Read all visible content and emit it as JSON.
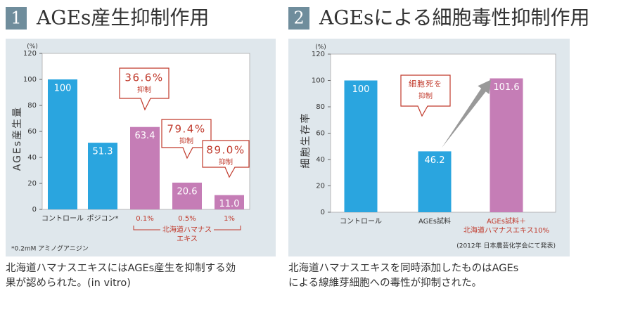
{
  "chart_data": [
    {
      "type": "bar",
      "number": "1",
      "title": "AGEs産生抑制作用",
      "y_unit": "(%)",
      "ylabel": "AGEs産生量",
      "categories": [
        [
          "コントロール"
        ],
        [
          "ポジコン*"
        ],
        [
          "0.1%"
        ],
        [
          "0.5%"
        ],
        [
          "1%"
        ]
      ],
      "values": [
        100,
        51.3,
        63.4,
        20.6,
        11.0
      ],
      "value_labels": [
        "100",
        "51.3",
        "63.4",
        "20.6",
        "11.0"
      ],
      "colors": [
        "#2aa5df",
        "#2aa5df",
        "#c57db6",
        "#c57db6",
        "#c57db6"
      ],
      "label_colors": [
        "#333333",
        "#333333",
        "#c0392b",
        "#c0392b",
        "#c0392b"
      ],
      "ylim": [
        0,
        120
      ],
      "yticks": [
        0,
        20,
        40,
        60,
        80,
        100,
        120
      ],
      "annotations": [
        [
          "36.6%",
          "抑制"
        ],
        [
          "79.4%",
          "抑制"
        ],
        [
          "89.0%",
          "抑制"
        ]
      ],
      "group_label": [
        "北海道ハマナス",
        "エキス"
      ],
      "footnote": "*0.2mM アミノグアニジン",
      "caption": [
        "北海道ハマナスエキスにはAGEs産生を抑制する効",
        "果が認められた。(in vitro)"
      ]
    },
    {
      "type": "bar",
      "number": "2",
      "title": "AGEsによる細胞毒性抑制作用",
      "y_unit": "(%)",
      "ylabel": "細胞生存率",
      "categories": [
        [
          "コントロール"
        ],
        [
          "AGEs試料"
        ],
        [
          "AGEs試料＋",
          "北海道ハマナスエキス10%"
        ]
      ],
      "values": [
        100,
        46.2,
        101.6
      ],
      "value_labels": [
        "100",
        "46.2",
        "101.6"
      ],
      "colors": [
        "#2aa5df",
        "#2aa5df",
        "#c57db6"
      ],
      "label_colors": [
        "#333333",
        "#333333",
        "#c0392b"
      ],
      "ylim": [
        0,
        120
      ],
      "yticks": [
        0,
        20,
        40,
        60,
        80,
        100,
        120
      ],
      "annotations": [
        [
          "細胞死を",
          "抑制"
        ]
      ],
      "note": "(2012年 日本農芸化学会にて発表)",
      "caption": [
        "北海道ハマナスエキスを同時添加したものはAGEs",
        "による線維芽細胞への毒性が抑制された。"
      ]
    }
  ]
}
